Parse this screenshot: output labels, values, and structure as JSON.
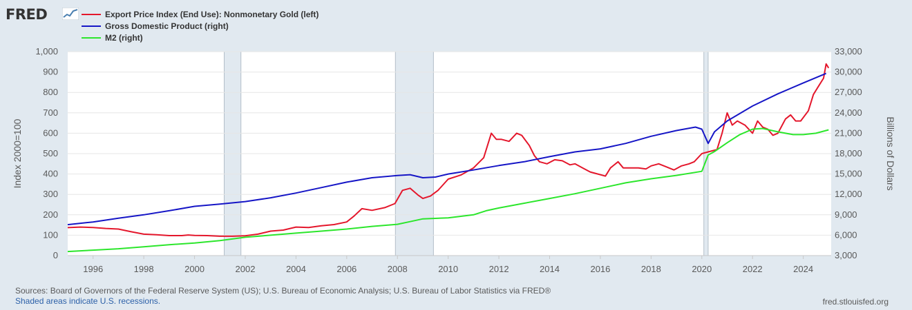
{
  "brand": {
    "logo_text": "FRED"
  },
  "legend": [
    {
      "label": "Export Price Index (End Use): Nonmonetary Gold (left)",
      "color": "#e4162b"
    },
    {
      "label": "Gross Domestic Product (right)",
      "color": "#1515c6"
    },
    {
      "label": "M2 (right)",
      "color": "#2be62b"
    }
  ],
  "footer": {
    "sources": "Sources: Board of Governors of the Federal Reserve System (US); U.S. Bureau of Economic Analysis; U.S. Bureau of Labor Statistics via FRED®",
    "recession_note": "Shaded areas indicate U.S. recessions.",
    "credit": "fred.stlouisfed.org"
  },
  "chart_data": {
    "type": "line",
    "xlim": [
      1995.0,
      2025.1
    ],
    "x_ticks": [
      1996,
      1998,
      2000,
      2002,
      2004,
      2006,
      2008,
      2010,
      2012,
      2014,
      2016,
      2018,
      2020,
      2022,
      2024
    ],
    "x_tick_labels": [
      "1996",
      "1998",
      "2000",
      "2002",
      "2004",
      "2006",
      "2008",
      "2010",
      "2012",
      "2014",
      "2016",
      "2018",
      "2020",
      "2022",
      "2024"
    ],
    "left_axis": {
      "label": "Index 2000=100",
      "ylim": [
        0,
        1000
      ],
      "ticks": [
        0,
        100,
        200,
        300,
        400,
        500,
        600,
        700,
        800,
        900,
        1000
      ],
      "tick_labels": [
        "0",
        "100",
        "200",
        "300",
        "400",
        "500",
        "600",
        "700",
        "800",
        "900",
        "1,000"
      ]
    },
    "right_axis": {
      "label": "Billions of Dollars",
      "ylim": [
        3000,
        33000
      ],
      "ticks": [
        3000,
        6000,
        9000,
        12000,
        15000,
        18000,
        21000,
        24000,
        27000,
        30000,
        33000
      ],
      "tick_labels": [
        "3,000",
        "6,000",
        "9,000",
        "12,000",
        "15,000",
        "18,000",
        "21,000",
        "24,000",
        "27,000",
        "30,000",
        "33,000"
      ]
    },
    "recessions": [
      [
        2001.17,
        2001.83
      ],
      [
        2007.92,
        2009.42
      ],
      [
        2020.08,
        2020.25
      ]
    ],
    "series": [
      {
        "name": "Export Price Index (End Use): Nonmonetary Gold (left)",
        "axis": "left",
        "color": "#e4162b",
        "x": [
          1995.0,
          1995.5,
          1996.0,
          1996.5,
          1997.0,
          1997.5,
          1998.0,
          1998.5,
          1999.0,
          1999.5,
          1999.75,
          2000.0,
          2000.5,
          2001.0,
          2001.5,
          2002.0,
          2002.5,
          2003.0,
          2003.5,
          2004.0,
          2004.5,
          2005.0,
          2005.5,
          2006.0,
          2006.3,
          2006.6,
          2007.0,
          2007.5,
          2007.9,
          2008.2,
          2008.5,
          2008.8,
          2009.0,
          2009.3,
          2009.6,
          2010.0,
          2010.5,
          2011.0,
          2011.4,
          2011.7,
          2011.9,
          2012.1,
          2012.4,
          2012.7,
          2012.9,
          2013.2,
          2013.4,
          2013.6,
          2013.9,
          2014.2,
          2014.5,
          2014.8,
          2015.0,
          2015.3,
          2015.6,
          2015.9,
          2016.2,
          2016.4,
          2016.7,
          2016.9,
          2017.2,
          2017.5,
          2017.8,
          2018.0,
          2018.3,
          2018.6,
          2018.9,
          2019.2,
          2019.5,
          2019.7,
          2020.0,
          2020.3,
          2020.6,
          2020.8,
          2021.0,
          2021.2,
          2021.4,
          2021.7,
          2022.0,
          2022.2,
          2022.4,
          2022.6,
          2022.8,
          2023.0,
          2023.3,
          2023.5,
          2023.7,
          2023.9,
          2024.2,
          2024.4,
          2024.6,
          2024.8,
          2024.9,
          2025.0
        ],
        "values": [
          137,
          140,
          138,
          133,
          130,
          117,
          105,
          102,
          98,
          98,
          101,
          99,
          98,
          95,
          95,
          97,
          105,
          120,
          125,
          140,
          138,
          146,
          152,
          165,
          195,
          230,
          222,
          235,
          255,
          320,
          330,
          298,
          280,
          292,
          320,
          375,
          395,
          430,
          480,
          600,
          570,
          570,
          560,
          600,
          590,
          540,
          490,
          460,
          450,
          470,
          465,
          445,
          450,
          430,
          410,
          400,
          390,
          430,
          460,
          430,
          430,
          430,
          425,
          440,
          450,
          435,
          420,
          440,
          450,
          460,
          500,
          510,
          520,
          600,
          700,
          640,
          660,
          640,
          600,
          660,
          630,
          620,
          590,
          600,
          670,
          690,
          660,
          660,
          710,
          790,
          830,
          870,
          940,
          920
        ]
      },
      {
        "name": "Gross Domestic Product (right)",
        "axis": "right",
        "color": "#1515c6",
        "x": [
          1995.0,
          1996.0,
          1997.0,
          1998.0,
          1999.0,
          2000.0,
          2001.0,
          2002.0,
          2003.0,
          2004.0,
          2005.0,
          2006.0,
          2007.0,
          2008.0,
          2008.5,
          2009.0,
          2009.5,
          2010.0,
          2011.0,
          2012.0,
          2013.0,
          2014.0,
          2015.0,
          2016.0,
          2017.0,
          2018.0,
          2019.0,
          2019.75,
          2020.0,
          2020.25,
          2020.5,
          2021.0,
          2022.0,
          2023.0,
          2024.0,
          2024.9
        ],
        "values": [
          7550,
          7950,
          8500,
          9000,
          9600,
          10250,
          10580,
          10950,
          11500,
          12200,
          13000,
          13800,
          14450,
          14780,
          14900,
          14450,
          14550,
          15000,
          15600,
          16250,
          16800,
          17550,
          18250,
          18700,
          19500,
          20550,
          21400,
          21900,
          21600,
          19500,
          21200,
          22800,
          25000,
          26800,
          28400,
          29800
        ]
      },
      {
        "name": "M2 (right)",
        "axis": "right",
        "color": "#2be62b",
        "x": [
          1995.0,
          1996.0,
          1997.0,
          1998.0,
          1999.0,
          2000.0,
          2001.0,
          2002.0,
          2003.0,
          2004.0,
          2005.0,
          2006.0,
          2007.0,
          2008.0,
          2008.5,
          2009.0,
          2010.0,
          2011.0,
          2011.5,
          2012.0,
          2013.0,
          2014.0,
          2015.0,
          2016.0,
          2017.0,
          2018.0,
          2019.0,
          2020.0,
          2020.25,
          2020.5,
          2021.0,
          2021.5,
          2022.0,
          2022.4,
          2023.0,
          2023.6,
          2024.0,
          2024.5,
          2025.0
        ],
        "values": [
          3600,
          3800,
          4000,
          4300,
          4600,
          4850,
          5200,
          5700,
          6000,
          6300,
          6600,
          6900,
          7300,
          7600,
          8000,
          8400,
          8550,
          9000,
          9600,
          10000,
          10700,
          11400,
          12100,
          12900,
          13700,
          14300,
          14800,
          15400,
          17800,
          18300,
          19600,
          20800,
          21600,
          21700,
          21200,
          20800,
          20800,
          21000,
          21500
        ]
      }
    ]
  }
}
